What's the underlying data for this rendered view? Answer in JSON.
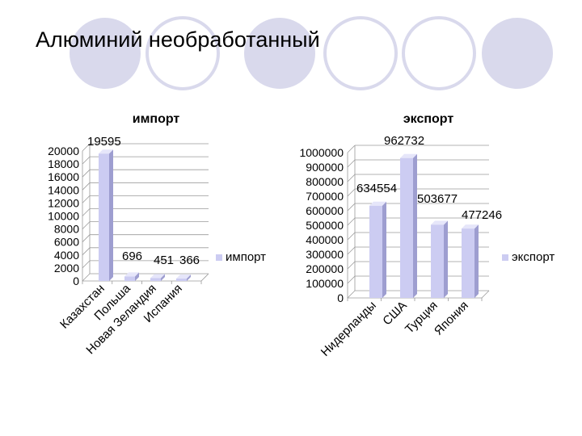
{
  "slide": {
    "title": "Алюминий необработанный"
  },
  "theme": {
    "circle_fill": "#d9d9ec",
    "circle_stroke": "#c9c9e3",
    "bar_front": "#ccccf2",
    "bar_side": "#9e9ed0",
    "bar_top": "#e6e6fa",
    "grid": "#9a9a9a"
  },
  "chart_data": [
    {
      "type": "bar",
      "title": "импорт",
      "categories": [
        "Казахстан",
        "Польша",
        "Новая Зеландия",
        "Испания"
      ],
      "series": [
        {
          "name": "импорт",
          "values": [
            19595,
            696,
            451,
            366
          ]
        }
      ],
      "data_labels": [
        "19595",
        "696",
        "451",
        "366"
      ],
      "y_ticks": [
        "0",
        "2000",
        "4000",
        "6000",
        "8000",
        "10000",
        "12000",
        "14000",
        "16000",
        "18000",
        "20000"
      ],
      "ylim": [
        0,
        20000
      ],
      "grid": true,
      "legend": "right"
    },
    {
      "type": "bar",
      "title": "экспорт",
      "categories": [
        "Нидерланды",
        "США",
        "Турция",
        "Япония"
      ],
      "series": [
        {
          "name": "экспорт",
          "values": [
            634554,
            962732,
            503677,
            477246
          ]
        }
      ],
      "data_labels": [
        "634554",
        "962732",
        "503677",
        "477246"
      ],
      "y_ticks": [
        "0",
        "100000",
        "200000",
        "300000",
        "400000",
        "500000",
        "600000",
        "700000",
        "800000",
        "900000",
        "1000000"
      ],
      "ylim": [
        0,
        1000000
      ],
      "grid": true,
      "legend": "right"
    }
  ]
}
